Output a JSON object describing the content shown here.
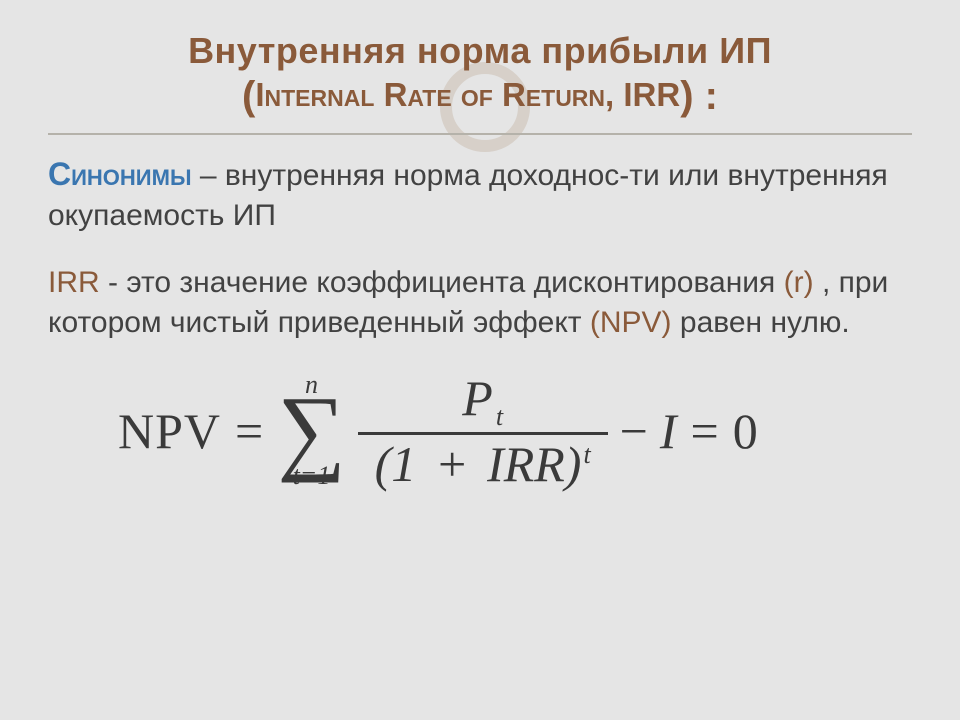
{
  "colors": {
    "background": "#e5e5e5",
    "title": "#8a5a3a",
    "accent_brown": "#8a5a3a",
    "accent_blue": "#3a76b0",
    "body_text": "#424242",
    "rule": "#b5b2aa",
    "formula": "#3a3a3a",
    "watermark_ring": "rgba(190,170,150,0.35)"
  },
  "title": {
    "line1": "Внутренняя норма прибыли ИП",
    "line2_pre": "(",
    "line2_text": "Internal Rate of Return, IRR",
    "line2_post": ") :"
  },
  "para1": {
    "syn_label": "Синонимы",
    "rest": " – внутренняя норма доходнос-ти или внутренняя окупаемость ИП"
  },
  "para2": {
    "irr": "IRR",
    "seg1": " - это значение коэффициента дисконтирования ",
    "r": "(r)",
    "seg2": " , при котором чистый приведенный эффект ",
    "npv": "(NPV)",
    "seg3": " равен нулю."
  },
  "formula": {
    "lhs": "NPV",
    "eq": "=",
    "sum_top": "n",
    "sigma": "∑",
    "sum_bottom": "t=1",
    "num_P": "P",
    "num_sub": "t",
    "den_open": "(1",
    "den_plus": "+",
    "den_irr": "IRR",
    "den_close": ")",
    "den_sup": "t",
    "minus": "−",
    "I": "I",
    "eq2": "=",
    "zero": "0"
  }
}
